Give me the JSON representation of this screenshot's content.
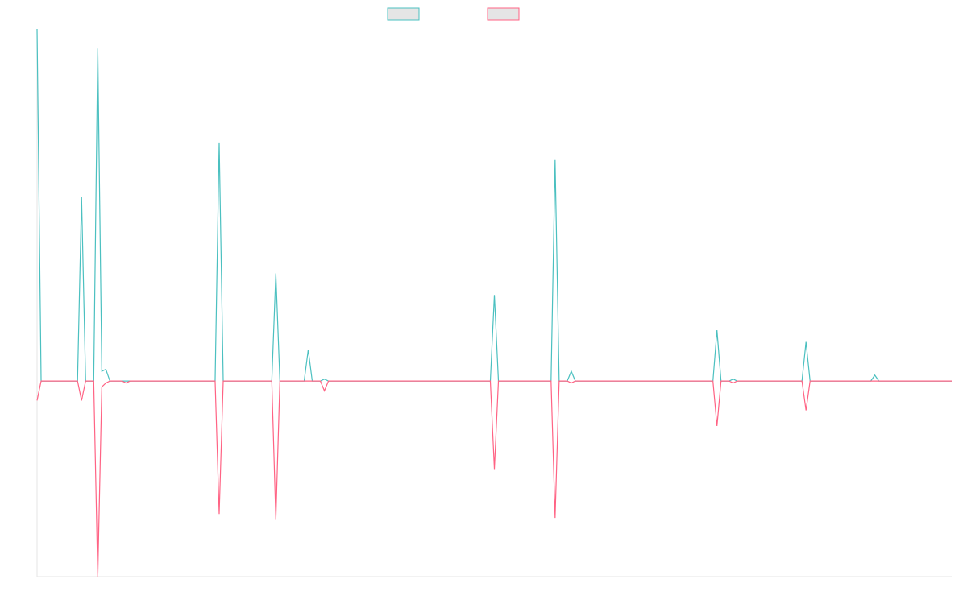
{
  "chart_data": {
    "type": "line",
    "title": "",
    "xlabel": "",
    "ylabel": "",
    "x_range": [
      0,
      226
    ],
    "ylim": [
      -100,
      180
    ],
    "grid": false,
    "legend_position": "top-center",
    "series": [
      {
        "color": "#4bc0c0",
        "fill": "#e5e5e5",
        "points": [
          [
            0,
            180
          ],
          [
            1,
            0
          ],
          [
            10,
            0
          ],
          [
            11,
            94
          ],
          [
            12,
            0
          ],
          [
            14,
            0
          ],
          [
            15,
            170
          ],
          [
            16,
            5
          ],
          [
            17,
            6
          ],
          [
            18,
            0
          ],
          [
            21,
            0
          ],
          [
            22,
            0
          ],
          [
            23,
            0
          ],
          [
            44,
            0
          ],
          [
            45,
            122
          ],
          [
            46,
            0
          ],
          [
            58,
            0
          ],
          [
            59,
            55
          ],
          [
            60,
            0
          ],
          [
            66,
            0
          ],
          [
            67,
            16
          ],
          [
            68,
            0
          ],
          [
            70,
            0
          ],
          [
            71,
            1
          ],
          [
            72,
            0
          ],
          [
            112,
            0
          ],
          [
            113,
            44
          ],
          [
            114,
            0
          ],
          [
            127,
            0
          ],
          [
            128,
            113
          ],
          [
            129,
            0
          ],
          [
            131,
            0
          ],
          [
            132,
            5
          ],
          [
            133,
            0
          ],
          [
            167,
            0
          ],
          [
            168,
            26
          ],
          [
            169,
            0
          ],
          [
            171,
            0
          ],
          [
            172,
            1
          ],
          [
            173,
            0
          ],
          [
            189,
            0
          ],
          [
            190,
            20
          ],
          [
            191,
            0
          ],
          [
            206,
            0
          ],
          [
            207,
            3
          ],
          [
            208,
            0
          ],
          [
            226,
            0
          ]
        ]
      },
      {
        "color": "#ff6384",
        "fill": "#e5e5e5",
        "points": [
          [
            0,
            -10
          ],
          [
            1,
            0
          ],
          [
            10,
            0
          ],
          [
            11,
            -10
          ],
          [
            12,
            0
          ],
          [
            14,
            0
          ],
          [
            15,
            -100
          ],
          [
            16,
            -3
          ],
          [
            17,
            -1
          ],
          [
            18,
            0
          ],
          [
            21,
            0
          ],
          [
            22,
            -1
          ],
          [
            23,
            0
          ],
          [
            44,
            0
          ],
          [
            45,
            -68
          ],
          [
            46,
            0
          ],
          [
            58,
            0
          ],
          [
            59,
            -71
          ],
          [
            60,
            0
          ],
          [
            66,
            0
          ],
          [
            67,
            0
          ],
          [
            68,
            0
          ],
          [
            70,
            0
          ],
          [
            71,
            -5
          ],
          [
            72,
            0
          ],
          [
            112,
            0
          ],
          [
            113,
            -45
          ],
          [
            114,
            0
          ],
          [
            127,
            0
          ],
          [
            128,
            -70
          ],
          [
            129,
            0
          ],
          [
            131,
            0
          ],
          [
            132,
            -1
          ],
          [
            133,
            0
          ],
          [
            167,
            0
          ],
          [
            168,
            -23
          ],
          [
            169,
            0
          ],
          [
            171,
            0
          ],
          [
            172,
            -1
          ],
          [
            173,
            0
          ],
          [
            189,
            0
          ],
          [
            190,
            -15
          ],
          [
            191,
            0
          ],
          [
            206,
            0
          ],
          [
            207,
            0
          ],
          [
            208,
            0
          ],
          [
            226,
            0
          ]
        ]
      }
    ]
  }
}
